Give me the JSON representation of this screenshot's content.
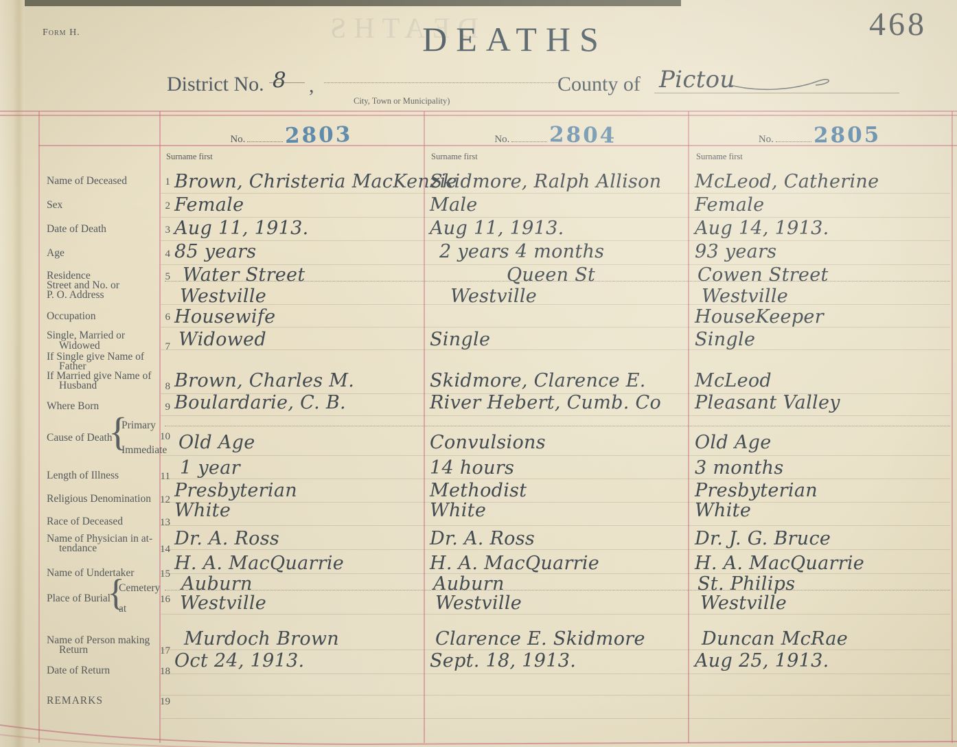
{
  "page": {
    "form_label": "Form H.",
    "title": "DEATHS",
    "page_number": "468",
    "district_label": "District No.",
    "district_value": "8",
    "district_separator": ",",
    "municipality_caption": "City, Town or Municipality)",
    "county_label": "County of",
    "county_value": "Pictou"
  },
  "table": {
    "no_label": "No.",
    "brace": "{",
    "surname_note": "Surname first",
    "record_numbers": [
      "2803",
      "2804",
      "2805"
    ],
    "row_labels": [
      {
        "num": "1",
        "lines": [
          "Name of Deceased"
        ]
      },
      {
        "num": "2",
        "lines": [
          "Sex"
        ]
      },
      {
        "num": "3",
        "lines": [
          "Date of Death"
        ]
      },
      {
        "num": "4",
        "lines": [
          "Age"
        ]
      },
      {
        "num": "5",
        "lines": [
          "Residence",
          "Street and No. or",
          "P. O. Address"
        ]
      },
      {
        "num": "6",
        "lines": [
          "Occupation"
        ]
      },
      {
        "num": "7",
        "lines": [
          "Single, Married or",
          "Widowed"
        ]
      },
      {
        "num": "8",
        "lines": [
          "If Single give Name of",
          "Father",
          "If Married give Name of",
          "Husband"
        ]
      },
      {
        "num": "9",
        "lines": [
          "Where Born"
        ]
      },
      {
        "num": "10",
        "label": "Cause of Death",
        "options": [
          "Primary",
          "Immediate"
        ]
      },
      {
        "num": "11",
        "lines": [
          "Length of Illness"
        ]
      },
      {
        "num": "12",
        "lines": [
          "Religious Denomination"
        ]
      },
      {
        "num": "13",
        "lines": [
          "Race of Deceased"
        ]
      },
      {
        "num": "14",
        "lines": [
          "Name of Physician in at-",
          "tendance"
        ]
      },
      {
        "num": "15",
        "lines": [
          "Name of Undertaker"
        ]
      },
      {
        "num": "16",
        "label": "Place of Burial",
        "options": [
          "Cemetery",
          "at"
        ]
      },
      {
        "num": "17",
        "lines": [
          "Name of Person making",
          "Return"
        ]
      },
      {
        "num": "18",
        "lines": [
          "Date of Return"
        ]
      },
      {
        "num": "19",
        "lines": [
          "REMARKS"
        ]
      }
    ],
    "records": [
      {
        "name": "Brown, Christeria MacKenzie",
        "sex": "Female",
        "date_of_death": "Aug 11, 1913.",
        "age": "85 years",
        "residence_street": "Water Street",
        "residence_town": "Westville",
        "occupation": "Housewife",
        "marital_status": "Widowed",
        "father_or_husband": "Brown, Charles M.",
        "where_born": "Boulardarie, C. B.",
        "cause_of_death": "Old Age",
        "length_of_illness": "1 year",
        "religious_denomination": "Presbyterian",
        "race": "White",
        "physician": "Dr. A. Ross",
        "undertaker": "H. A. MacQuarrie",
        "burial_cemetery": "Auburn",
        "burial_at": "Westville",
        "person_making_return": "Murdoch Brown",
        "date_of_return": "Oct 24, 1913."
      },
      {
        "name": "Skidmore, Ralph Allison",
        "sex": "Male",
        "date_of_death": "Aug 11, 1913.",
        "age": "2 years 4 months",
        "residence_street": "Queen St",
        "residence_town": "Westville",
        "occupation": "",
        "marital_status": "Single",
        "father_or_husband": "Skidmore, Clarence E.",
        "where_born": "River Hebert, Cumb. Co",
        "cause_of_death": "Convulsions",
        "length_of_illness": "14 hours",
        "religious_denomination": "Methodist",
        "race": "White",
        "physician": "Dr. A. Ross",
        "undertaker": "H. A. MacQuarrie",
        "burial_cemetery": "Auburn",
        "burial_at": "Westville",
        "person_making_return": "Clarence E. Skidmore",
        "date_of_return": "Sept. 18, 1913."
      },
      {
        "name": "McLeod, Catherine",
        "sex": "Female",
        "date_of_death": "Aug 14, 1913.",
        "age": "93 years",
        "residence_street": "Cowen Street",
        "residence_town": "Westville",
        "occupation": "HouseKeeper",
        "marital_status": "Single",
        "father_or_husband": "McLeod",
        "where_born": "Pleasant Valley",
        "cause_of_death": "Old Age",
        "length_of_illness": "3 months",
        "religious_denomination": "Presbyterian",
        "race": "White",
        "physician": "Dr. J. G. Bruce",
        "undertaker": "H. A. MacQuarrie",
        "burial_cemetery": "St. Philips",
        "burial_at": "Westville",
        "person_making_return": "Duncan McRae",
        "date_of_return": "Aug 25, 1913."
      }
    ]
  }
}
